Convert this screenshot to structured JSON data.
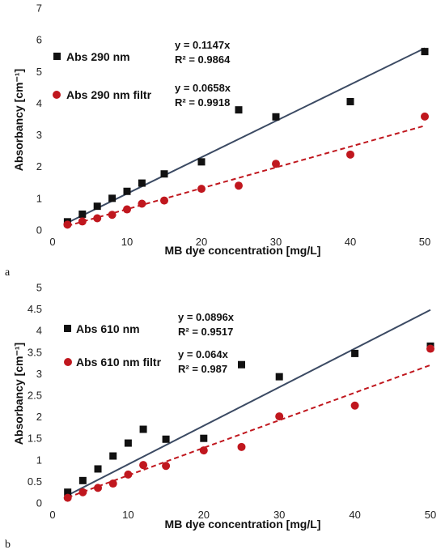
{
  "chart_data": [
    {
      "type": "scatter",
      "panel_label": "a",
      "title": "",
      "xlabel": "MB dye concentration [mg/L]",
      "ylabel": "Absorbancy [cm⁻¹]",
      "xlim": [
        0,
        50
      ],
      "ylim": [
        0,
        7
      ],
      "xticks": [
        "0",
        "10",
        "20",
        "30",
        "40",
        "50"
      ],
      "yticks": [
        "0",
        "1",
        "2",
        "3",
        "4",
        "5",
        "6",
        "7"
      ],
      "grid": false,
      "legend_position": "left",
      "series": [
        {
          "name": "Abs 290 nm",
          "marker": "square",
          "color": "#111111",
          "x": [
            2,
            4,
            6,
            8,
            10,
            12,
            15,
            20,
            25,
            30,
            40,
            50
          ],
          "y": [
            0.26,
            0.5,
            0.75,
            1.0,
            1.22,
            1.48,
            1.77,
            2.15,
            3.79,
            3.57,
            4.05,
            5.63
          ],
          "trendline": {
            "slope": 0.1147,
            "style": "solid",
            "color": "#3b4a63",
            "equation": "y = 0.1147x",
            "r2": "R² = 0.9864"
          }
        },
        {
          "name": "Abs 290 nm filtr",
          "marker": "circle",
          "color": "#c0171e",
          "x": [
            2,
            4,
            6,
            8,
            10,
            12,
            15,
            20,
            25,
            30,
            40,
            50
          ],
          "y": [
            0.17,
            0.27,
            0.37,
            0.48,
            0.65,
            0.83,
            0.93,
            1.3,
            1.4,
            2.09,
            2.38,
            3.58
          ],
          "trendline": {
            "slope": 0.0658,
            "style": "dashed",
            "color": "#c0171e",
            "equation": "y = 0.0658x",
            "r2": "R² = 0.9918"
          }
        }
      ]
    },
    {
      "type": "scatter",
      "panel_label": "b",
      "title": "",
      "xlabel": "MB dye concentration [mg/L]",
      "ylabel": "Absorbancy [cm⁻¹]",
      "xlim": [
        0,
        50
      ],
      "ylim": [
        0,
        5
      ],
      "xticks": [
        "0",
        "10",
        "20",
        "30",
        "40",
        "50"
      ],
      "yticks": [
        "0",
        "0.5",
        "1",
        "1.5",
        "2",
        "2.5",
        "3",
        "3.5",
        "4",
        "4.5",
        "5"
      ],
      "grid": false,
      "legend_position": "left",
      "series": [
        {
          "name": "Abs 610 nm",
          "marker": "square",
          "color": "#111111",
          "x": [
            2,
            4,
            6,
            8,
            10,
            12,
            15,
            20,
            25,
            30,
            40,
            50
          ],
          "y": [
            0.25,
            0.52,
            0.79,
            1.09,
            1.39,
            1.71,
            1.48,
            1.5,
            3.21,
            2.93,
            3.47,
            3.64
          ],
          "trendline": {
            "slope": 0.0896,
            "style": "solid",
            "color": "#3b4a63",
            "equation": "y = 0.0896x",
            "r2": "R² = 0.9517"
          }
        },
        {
          "name": "Abs 610 nm filtr",
          "marker": "circle",
          "color": "#c0171e",
          "x": [
            2,
            4,
            6,
            8,
            10,
            12,
            15,
            20,
            25,
            30,
            40,
            50
          ],
          "y": [
            0.12,
            0.25,
            0.35,
            0.45,
            0.66,
            0.88,
            0.86,
            1.22,
            1.3,
            2.01,
            2.26,
            3.58
          ],
          "trendline": {
            "slope": 0.064,
            "style": "dashed",
            "color": "#c0171e",
            "equation": "y = 0.064x",
            "r2": "R² = 0.987"
          }
        }
      ]
    }
  ]
}
